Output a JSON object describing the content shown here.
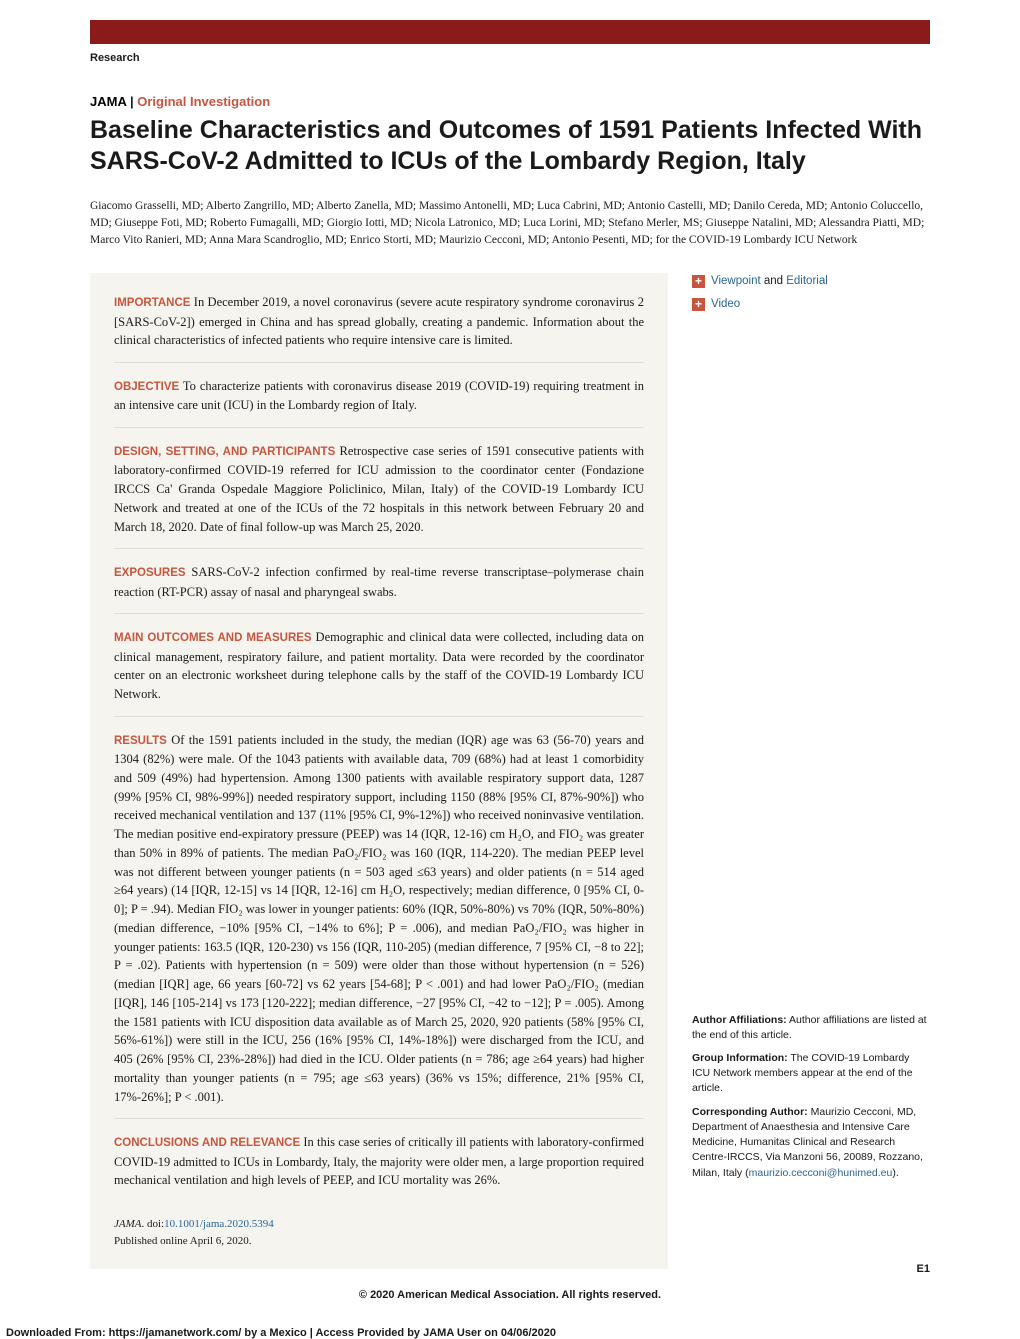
{
  "colors": {
    "header_bar": "#8b1a1a",
    "accent": "#c8553d",
    "link": "#2a6496",
    "abstract_bg": "#f6f4ef",
    "abstract_divider": "#e0ddd4"
  },
  "header": {
    "research_label": "Research",
    "journal": "JAMA",
    "separator": "  |  ",
    "article_type": "Original Investigation",
    "title": "Baseline Characteristics and Outcomes of 1591 Patients Infected With SARS-CoV-2 Admitted to ICUs of the Lombardy Region, Italy",
    "authors": "Giacomo Grasselli, MD; Alberto Zangrillo, MD; Alberto Zanella, MD; Massimo Antonelli, MD; Luca Cabrini, MD; Antonio Castelli, MD; Danilo Cereda, MD; Antonio Coluccello, MD; Giuseppe Foti, MD; Roberto Fumagalli, MD; Giorgio Iotti, MD; Nicola Latronico, MD; Luca Lorini, MD; Stefano Merler, MS; Giuseppe Natalini, MD; Alessandra Piatti, MD; Marco Vito Ranieri, MD; Anna Mara Scandroglio, MD; Enrico Storti, MD; Maurizio Cecconi, MD; Antonio Pesenti, MD; for the COVID-19 Lombardy ICU Network"
  },
  "abstract": {
    "importance": {
      "label": "IMPORTANCE",
      "text": " In December 2019, a novel coronavirus (severe acute respiratory syndrome coronavirus 2 [SARS-CoV-2]) emerged in China and has spread globally, creating a pandemic. Information about the clinical characteristics of infected patients who require intensive care is limited."
    },
    "objective": {
      "label": "OBJECTIVE",
      "text": " To characterize patients with coronavirus disease 2019 (COVID-19) requiring treatment in an intensive care unit (ICU) in the Lombardy region of Italy."
    },
    "design": {
      "label": "DESIGN, SETTING, AND PARTICIPANTS",
      "text": " Retrospective case series of 1591 consecutive patients with laboratory-confirmed COVID-19 referred for ICU admission to the coordinator center (Fondazione IRCCS Ca' Granda Ospedale Maggiore Policlinico, Milan, Italy) of the COVID-19 Lombardy ICU Network and treated at one of the ICUs of the 72 hospitals in this network between February 20 and March 18, 2020. Date of final follow-up was March 25, 2020."
    },
    "exposures": {
      "label": "EXPOSURES",
      "text": " SARS-CoV-2 infection confirmed by real-time reverse transcriptase–polymerase chain reaction (RT-PCR) assay of nasal and pharyngeal swabs."
    },
    "outcomes": {
      "label": "MAIN OUTCOMES AND MEASURES",
      "text": " Demographic and clinical data were collected, including data on clinical management, respiratory failure, and patient mortality. Data were recorded by the coordinator center on an electronic worksheet during telephone calls by the staff of the COVID-19 Lombardy ICU Network."
    },
    "results": {
      "label": "RESULTS",
      "text": " Of the 1591 patients included in the study, the median (IQR) age was 63 (56-70) years and 1304 (82%) were male. Of the 1043 patients with available data, 709 (68%) had at least 1 comorbidity and 509 (49%) had hypertension. Among 1300 patients with available respiratory support data, 1287 (99% [95% CI, 98%-99%]) needed respiratory support, including 1150 (88% [95% CI, 87%-90%]) who received mechanical ventilation and 137 (11% [95% CI, 9%-12%]) who received noninvasive ventilation. The median positive end-expiratory pressure (PEEP) was 14 (IQR, 12-16) cm H₂O, and FIO₂ was greater than 50% in 89% of patients. The median PaO₂/FIO₂ was 160 (IQR, 114-220). The median PEEP level was not different between younger patients (n = 503 aged ≤63 years) and older patients (n = 514 aged ≥64 years) (14 [IQR, 12-15] vs 14 [IQR, 12-16] cm H₂O, respectively; median difference, 0 [95% CI, 0-0]; P = .94). Median FIO₂ was lower in younger patients: 60% (IQR, 50%-80%) vs 70% (IQR, 50%-80%) (median difference, −10% [95% CI, −14% to 6%]; P = .006), and median PaO₂/FIO₂ was higher in younger patients: 163.5 (IQR, 120-230) vs 156 (IQR, 110-205) (median difference, 7 [95% CI, −8 to 22]; P = .02). Patients with hypertension (n = 509) were older than those without hypertension (n = 526) (median [IQR] age, 66 years [60-72] vs 62 years [54-68]; P < .001) and had lower PaO₂/FIO₂ (median [IQR], 146 [105-214] vs 173 [120-222]; median difference, −27 [95% CI, −42 to −12]; P = .005). Among the 1581 patients with ICU disposition data available as of March 25, 2020, 920 patients (58% [95% CI, 56%-61%]) were still in the ICU, 256 (16% [95% CI, 14%-18%]) were discharged from the ICU, and 405 (26% [95% CI, 23%-28%]) had died in the ICU. Older patients (n = 786; age ≥64 years) had higher mortality than younger patients (n = 795; age ≤63 years) (36% vs 15%; difference, 21% [95% CI, 17%-26%]; P < .001)."
    },
    "conclusions": {
      "label": "CONCLUSIONS AND RELEVANCE",
      "text": " In this case series of critically ill patients with laboratory-confirmed COVID-19 admitted to ICUs in Lombardy, Italy, the majority were older men, a large proportion required mechanical ventilation and high levels of PEEP, and ICU mortality was 26%."
    }
  },
  "citation": {
    "journal": "JAMA",
    "doi_prefix": ". doi:",
    "doi": "10.1001/jama.2020.5394",
    "published": "Published online April 6, 2020."
  },
  "sidebar": {
    "supplemental": [
      {
        "prefix": "",
        "links": [
          {
            "text": "Viewpoint"
          },
          {
            "plain": " and "
          },
          {
            "text": "Editorial"
          }
        ]
      },
      {
        "prefix": "",
        "links": [
          {
            "text": "Video"
          }
        ]
      }
    ],
    "affiliations": {
      "label": "Author Affiliations:",
      "text": " Author affiliations are listed at the end of this article."
    },
    "group_info": {
      "label": "Group Information:",
      "text": " The COVID-19 Lombardy ICU Network members appear at the end of the article."
    },
    "corresponding": {
      "label": "Corresponding Author:",
      "text": " Maurizio Cecconi, MD, Department of Anaesthesia and Intensive Care Medicine, Humanitas Clinical and Research Centre-IRCCS, Via Manzoni 56, 20089, Rozzano, Milan, Italy (",
      "email": "maurizio.cecconi@hunimed.eu",
      "after": ")."
    }
  },
  "footer": {
    "copyright": "© 2020 American Medical Association. All rights reserved.",
    "page_num": "E1",
    "download": "Downloaded From: https://jamanetwork.com/ by a Mexico | Access Provided by JAMA  User  on 04/06/2020"
  }
}
